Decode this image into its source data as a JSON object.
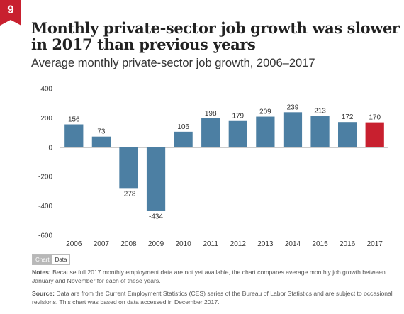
{
  "badge": "9",
  "title": "Monthly private-sector job growth was slower in 2017 than previous years",
  "subtitle": "Average monthly private-sector job growth, 2006–2017",
  "toggle": {
    "chart_label": "Chart",
    "data_label": "Data",
    "selected": "Chart"
  },
  "notes": {
    "notes_label": "Notes:",
    "notes_text": "Because full 2017 monthly employment data are not yet available, the chart compares average monthly job growth between January and November for each of these years.",
    "source_label": "Source:",
    "source_text": "Data are from the Current Employment Statistics (CES) series of the Bureau of Labor Statistics and are subject to occasional revisions. This chart was based on data accessed in December 2017."
  },
  "colors": {
    "bar": "#4c7fa3",
    "highlight": "#c8202f",
    "accent": "#c8202f"
  },
  "chart_data": {
    "type": "bar",
    "categories": [
      "2006",
      "2007",
      "2008",
      "2009",
      "2010",
      "2011",
      "2012",
      "2013",
      "2014",
      "2015",
      "2016",
      "2017"
    ],
    "values": [
      156,
      73,
      -278,
      -434,
      106,
      198,
      179,
      209,
      239,
      213,
      172,
      170
    ],
    "data_labels": [
      "156",
      "73",
      "-278",
      "-434",
      "106",
      "198",
      "179",
      "209",
      "239",
      "213",
      "172",
      "170"
    ],
    "highlight_category": "2017",
    "yticks": [
      400,
      200,
      0,
      -200,
      -400,
      -600
    ],
    "ytick_labels": [
      "400",
      "200",
      "0",
      "-200",
      "-400",
      "-600"
    ],
    "ylim": [
      -600,
      400
    ],
    "grid": false,
    "title": "",
    "xlabel": "",
    "ylabel": ""
  }
}
